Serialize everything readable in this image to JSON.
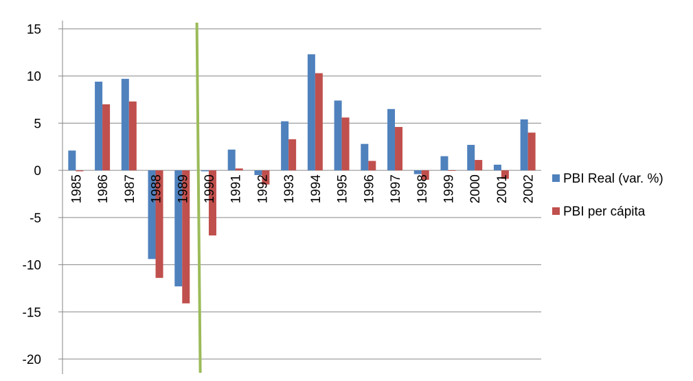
{
  "chart_data": {
    "type": "bar",
    "categories": [
      "1985",
      "1986",
      "1987",
      "1988",
      "1989",
      "1990",
      "1991",
      "1992",
      "1993",
      "1994",
      "1995",
      "1996",
      "1997",
      "1998",
      "1999",
      "2000",
      "2001",
      "2002"
    ],
    "series": [
      {
        "name": "PBI Real (var. %)",
        "color": "#4f81bd",
        "values": [
          2.1,
          9.4,
          9.7,
          -9.4,
          -12.3,
          -0.1,
          2.2,
          -0.5,
          5.2,
          12.3,
          7.4,
          2.8,
          6.5,
          -0.4,
          1.5,
          2.7,
          0.6,
          5.4
        ]
      },
      {
        "name": "PBI per cápita",
        "color": "#c0504d",
        "values": [
          -0.1,
          7.0,
          7.3,
          -11.4,
          -14.1,
          -6.9,
          0.2,
          -1.5,
          3.3,
          10.3,
          5.6,
          1.0,
          4.6,
          -1.0,
          0.0,
          1.1,
          -0.9,
          4.0
        ]
      }
    ],
    "yticks": [
      "15",
      "10",
      "5",
      "0",
      "-5",
      "-10",
      "-15",
      "-20"
    ],
    "ylim": [
      -20,
      15
    ],
    "ystep": 5,
    "grid": true,
    "legend_position": "right",
    "reference_line": {
      "category": "1989",
      "color": "#9bbb59"
    },
    "title": "",
    "xlabel": "",
    "ylabel": ""
  }
}
